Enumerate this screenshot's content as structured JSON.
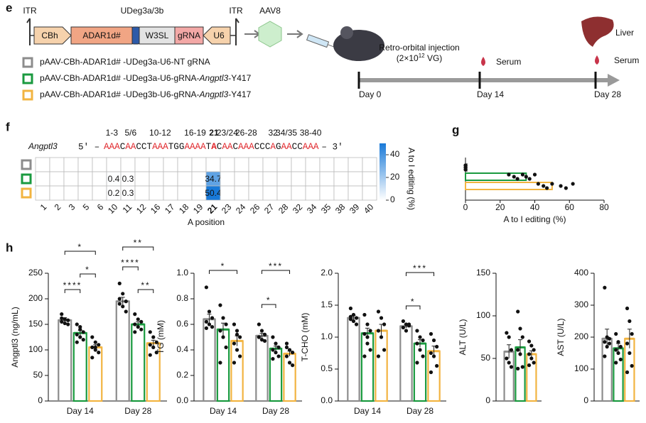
{
  "panel_e": {
    "label": "e",
    "construct": {
      "itr_left": "ITR",
      "itr_right": "ITR",
      "header": "UDeg3a/3b",
      "elements": [
        "CBh",
        "ADAR1d#",
        "W3SL",
        "gRNA",
        "U6"
      ]
    },
    "vector": "AAV8",
    "legend": [
      {
        "color": "#8c8c8c",
        "parts": [
          "pAAV-CBh-ADAR1d# -UDeg3a-U6-NT gRNA"
        ]
      },
      {
        "color": "#1a9a3f",
        "parts": [
          "pAAV-CBh-ADAR1d# -UDeg3a-U6-gRNA-",
          "Angptl3",
          "-Y417"
        ]
      },
      {
        "color": "#f2b441",
        "parts": [
          "pAAV-CBh-ADAR1d# -UDeg3b-U6-gRNA-",
          "Angptl3",
          "-Y417"
        ]
      }
    ],
    "injection": [
      "Retro-orbital injection",
      "(2×10",
      "12",
      " VG)"
    ],
    "samples": [
      "Serum",
      "Liver",
      "Serum"
    ],
    "timeline": [
      "Day 0",
      "Day 14",
      "Day 28"
    ]
  },
  "chart_data": [
    {
      "type": "heatmap",
      "panel": "f",
      "gene": "Angptl3",
      "sequence": {
        "start": "5' –",
        "end": "– 3'",
        "segments": [
          {
            "text": "AAA",
            "red": true
          },
          {
            "text": "C",
            "red": false
          },
          {
            "text": "AA",
            "red": true
          },
          {
            "text": "CCT",
            "red": false
          },
          {
            "text": "AAA",
            "red": true
          },
          {
            "text": "TGG",
            "red": false
          },
          {
            "text": "AAAA",
            "red": true
          },
          {
            "text": "T",
            "red": false
          },
          {
            "text": "A",
            "red": true,
            "bold": true
          },
          {
            "text": "C",
            "red": false
          },
          {
            "text": "AA",
            "red": true
          },
          {
            "text": "C",
            "red": false
          },
          {
            "text": "AAA",
            "red": true
          },
          {
            "text": "CCC",
            "red": false
          },
          {
            "text": "A",
            "red": true
          },
          {
            "text": "G",
            "red": false
          },
          {
            "text": "AA",
            "red": true
          },
          {
            "text": "CC",
            "red": false
          },
          {
            "text": "AAA",
            "red": true
          }
        ]
      },
      "groups": [
        "1-3",
        "5/6",
        "10-12",
        "16-19",
        "21",
        "23/24",
        "26-28",
        "32",
        "34/35",
        "38-40"
      ],
      "x": [
        1,
        2,
        3,
        5,
        6,
        10,
        11,
        12,
        16,
        17,
        18,
        19,
        21,
        23,
        24,
        26,
        27,
        28,
        32,
        34,
        35,
        38,
        39,
        40
      ],
      "emphasis": 21,
      "xlabel": "A position",
      "row_colors": [
        "#8c8c8c",
        "#1a9a3f",
        "#f2b441"
      ],
      "values": [
        [
          null,
          null,
          null,
          null,
          null,
          null,
          null,
          null,
          null,
          null,
          null,
          null,
          null,
          null,
          null,
          null,
          null,
          null,
          null,
          null,
          null,
          null,
          null,
          null
        ],
        [
          null,
          null,
          null,
          null,
          null,
          0.4,
          0.3,
          null,
          null,
          null,
          null,
          null,
          34.7,
          null,
          null,
          null,
          null,
          null,
          null,
          null,
          null,
          null,
          null,
          null
        ],
        [
          null,
          null,
          null,
          null,
          null,
          0.2,
          0.3,
          null,
          null,
          null,
          null,
          null,
          50.4,
          null,
          null,
          null,
          null,
          null,
          null,
          null,
          null,
          null,
          null,
          null
        ]
      ],
      "zlim": [
        0,
        50
      ],
      "zticks": [
        0,
        20,
        40
      ],
      "zlabel": "A to I editing (%)",
      "colormap": [
        "#ffffff",
        "#1a7ad8"
      ]
    },
    {
      "type": "hbar",
      "panel": "g",
      "values": [
        0,
        35,
        50
      ],
      "colors": [
        "#8c8c8c",
        "#1a9a3f",
        "#f2b441"
      ],
      "points": [
        [
          0,
          0,
          0,
          0
        ],
        [
          25,
          28,
          30,
          33,
          35,
          37,
          40
        ],
        [
          42,
          45,
          47,
          50,
          55,
          58,
          62
        ]
      ],
      "xlim": [
        0,
        80
      ],
      "xticks": [
        0,
        20,
        40,
        60,
        80
      ],
      "xlabel": "A to I editing (%)"
    },
    {
      "type": "bar",
      "panel": "h",
      "ylabel": "Angptl3 (ng/mL)",
      "categories": [
        "Day 14",
        "Day 28"
      ],
      "ylim": [
        0,
        250
      ],
      "yticks": [
        0,
        50,
        100,
        150,
        200,
        250
      ],
      "series": [
        {
          "color": "#8c8c8c",
          "values": [
            158,
            195
          ],
          "errors": [
            5,
            8
          ],
          "points": [
            [
              170,
              160,
              158,
              155,
              152,
              150,
              162
            ],
            [
              230,
              210,
              195,
              190,
              185,
              175,
              200
            ]
          ]
        },
        {
          "color": "#1a9a3f",
          "values": [
            133,
            150
          ],
          "errors": [
            5,
            5
          ],
          "points": [
            [
              150,
              140,
              135,
              130,
              125,
              120,
              115,
              145
            ],
            [
              170,
              160,
              155,
              150,
              145,
              140,
              135
            ]
          ]
        },
        {
          "color": "#f2b441",
          "values": [
            105,
            113
          ],
          "errors": [
            5,
            6
          ],
          "points": [
            [
              125,
              115,
              110,
              105,
              100,
              95,
              85,
              105
            ],
            [
              135,
              125,
              115,
              110,
              105,
              95,
              90
            ]
          ]
        }
      ],
      "annotations": [
        "*",
        "*",
        "****",
        "**",
        "****",
        "**"
      ]
    },
    {
      "type": "bar",
      "ylabel": "TG (mM)",
      "categories": [
        "Day 14",
        "Day 28"
      ],
      "ylim": [
        0,
        1
      ],
      "yticks": [
        {
          "value": 0,
          "label": "0.0"
        },
        0.2,
        0.4,
        0.6,
        0.8,
        {
          "value": 1,
          "label": "1.0"
        }
      ],
      "series": [
        {
          "color": "#8c8c8c",
          "values": [
            0.64,
            0.51
          ],
          "errors": [
            0.04,
            0.02
          ],
          "points": [
            [
              0.89,
              0.7,
              0.65,
              0.62,
              0.6,
              0.58,
              0.57
            ],
            [
              0.6,
              0.55,
              0.52,
              0.5,
              0.48,
              0.47,
              0.5
            ]
          ]
        },
        {
          "color": "#1a9a3f",
          "values": [
            0.56,
            0.41
          ],
          "errors": [
            0.05,
            0.02
          ],
          "points": [
            [
              0.75,
              0.65,
              0.6,
              0.55,
              0.5,
              0.42,
              0.3
            ],
            [
              0.5,
              0.45,
              0.42,
              0.4,
              0.38,
              0.35,
              0.33
            ]
          ]
        },
        {
          "color": "#f2b441",
          "values": [
            0.47,
            0.37
          ],
          "errors": [
            0.04,
            0.02
          ],
          "points": [
            [
              0.6,
              0.55,
              0.5,
              0.45,
              0.4,
              0.35,
              0.3,
              0.52
            ],
            [
              0.45,
              0.4,
              0.38,
              0.35,
              0.3,
              0.28,
              0.42
            ]
          ]
        }
      ],
      "annotations": [
        "*",
        "***",
        "*"
      ]
    },
    {
      "type": "bar",
      "ylabel": "T-CHO (mM)",
      "categories": [
        "Day 14",
        "Day 28"
      ],
      "ylim": [
        0,
        2
      ],
      "yticks": [
        {
          "value": 0,
          "label": "0.0"
        },
        0.5,
        {
          "value": 1,
          "label": "1.0"
        },
        1.5,
        {
          "value": 2,
          "label": "2.0"
        }
      ],
      "series": [
        {
          "color": "#8c8c8c",
          "values": [
            1.3,
            1.17
          ],
          "errors": [
            0.04,
            0.03
          ],
          "points": [
            [
              1.45,
              1.35,
              1.3,
              1.28,
              1.25,
              1.2,
              1.32
            ],
            [
              1.25,
              1.2,
              1.18,
              1.15,
              1.1,
              1.2
            ]
          ]
        },
        {
          "color": "#1a9a3f",
          "values": [
            1.06,
            0.9
          ],
          "errors": [
            0.08,
            0.06
          ],
          "points": [
            [
              1.35,
              1.2,
              1.1,
              1.05,
              0.9,
              0.8,
              0.7,
              1.0
            ],
            [
              1.1,
              1.0,
              0.95,
              0.9,
              0.8,
              0.7,
              0.6
            ]
          ]
        },
        {
          "color": "#f2b441",
          "values": [
            1.1,
            0.78
          ],
          "errors": [
            0.1,
            0.08
          ],
          "points": [
            [
              1.4,
              1.3,
              1.2,
              1.1,
              1.0,
              0.8,
              0.7
            ],
            [
              1.05,
              0.95,
              0.85,
              0.75,
              0.7,
              0.55,
              0.45
            ]
          ]
        }
      ],
      "annotations": [
        "***",
        "*"
      ]
    },
    {
      "type": "bar",
      "ylabel": "ALT (U/L)",
      "categories": [
        null
      ],
      "ylim": [
        0,
        150
      ],
      "yticks": [
        0,
        50,
        100,
        150
      ],
      "series": [
        {
          "color": "#8c8c8c",
          "values": [
            58
          ],
          "errors": [
            8
          ],
          "points": [
            [
              80,
              75,
              60,
              50,
              45,
              40
            ]
          ]
        },
        {
          "color": "#1a9a3f",
          "values": [
            63
          ],
          "errors": [
            9
          ],
          "points": [
            [
              105,
              85,
              75,
              60,
              55,
              40,
              38
            ]
          ]
        },
        {
          "color": "#f2b441",
          "values": [
            55
          ],
          "errors": [
            4
          ],
          "points": [
            [
              70,
              65,
              60,
              55,
              50,
              45,
              42
            ]
          ]
        }
      ]
    },
    {
      "type": "bar",
      "ylabel": "AST (U/L)",
      "categories": [
        null
      ],
      "ylim": [
        0,
        400
      ],
      "yticks": [
        0,
        100,
        200,
        300,
        400
      ],
      "series": [
        {
          "color": "#8c8c8c",
          "values": [
            195
          ],
          "errors": [
            30
          ],
          "points": [
            [
              355,
              200,
              195,
              185,
              170,
              180,
              140
            ]
          ]
        },
        {
          "color": "#1a9a3f",
          "values": [
            165
          ],
          "errors": [
            15
          ],
          "points": [
            [
              210,
              185,
              170,
              160,
              150,
              130,
              120
            ]
          ]
        },
        {
          "color": "#f2b441",
          "values": [
            195
          ],
          "errors": [
            30
          ],
          "points": [
            [
              290,
              250,
              210,
              180,
              150,
              110,
              90
            ]
          ]
        }
      ]
    }
  ]
}
